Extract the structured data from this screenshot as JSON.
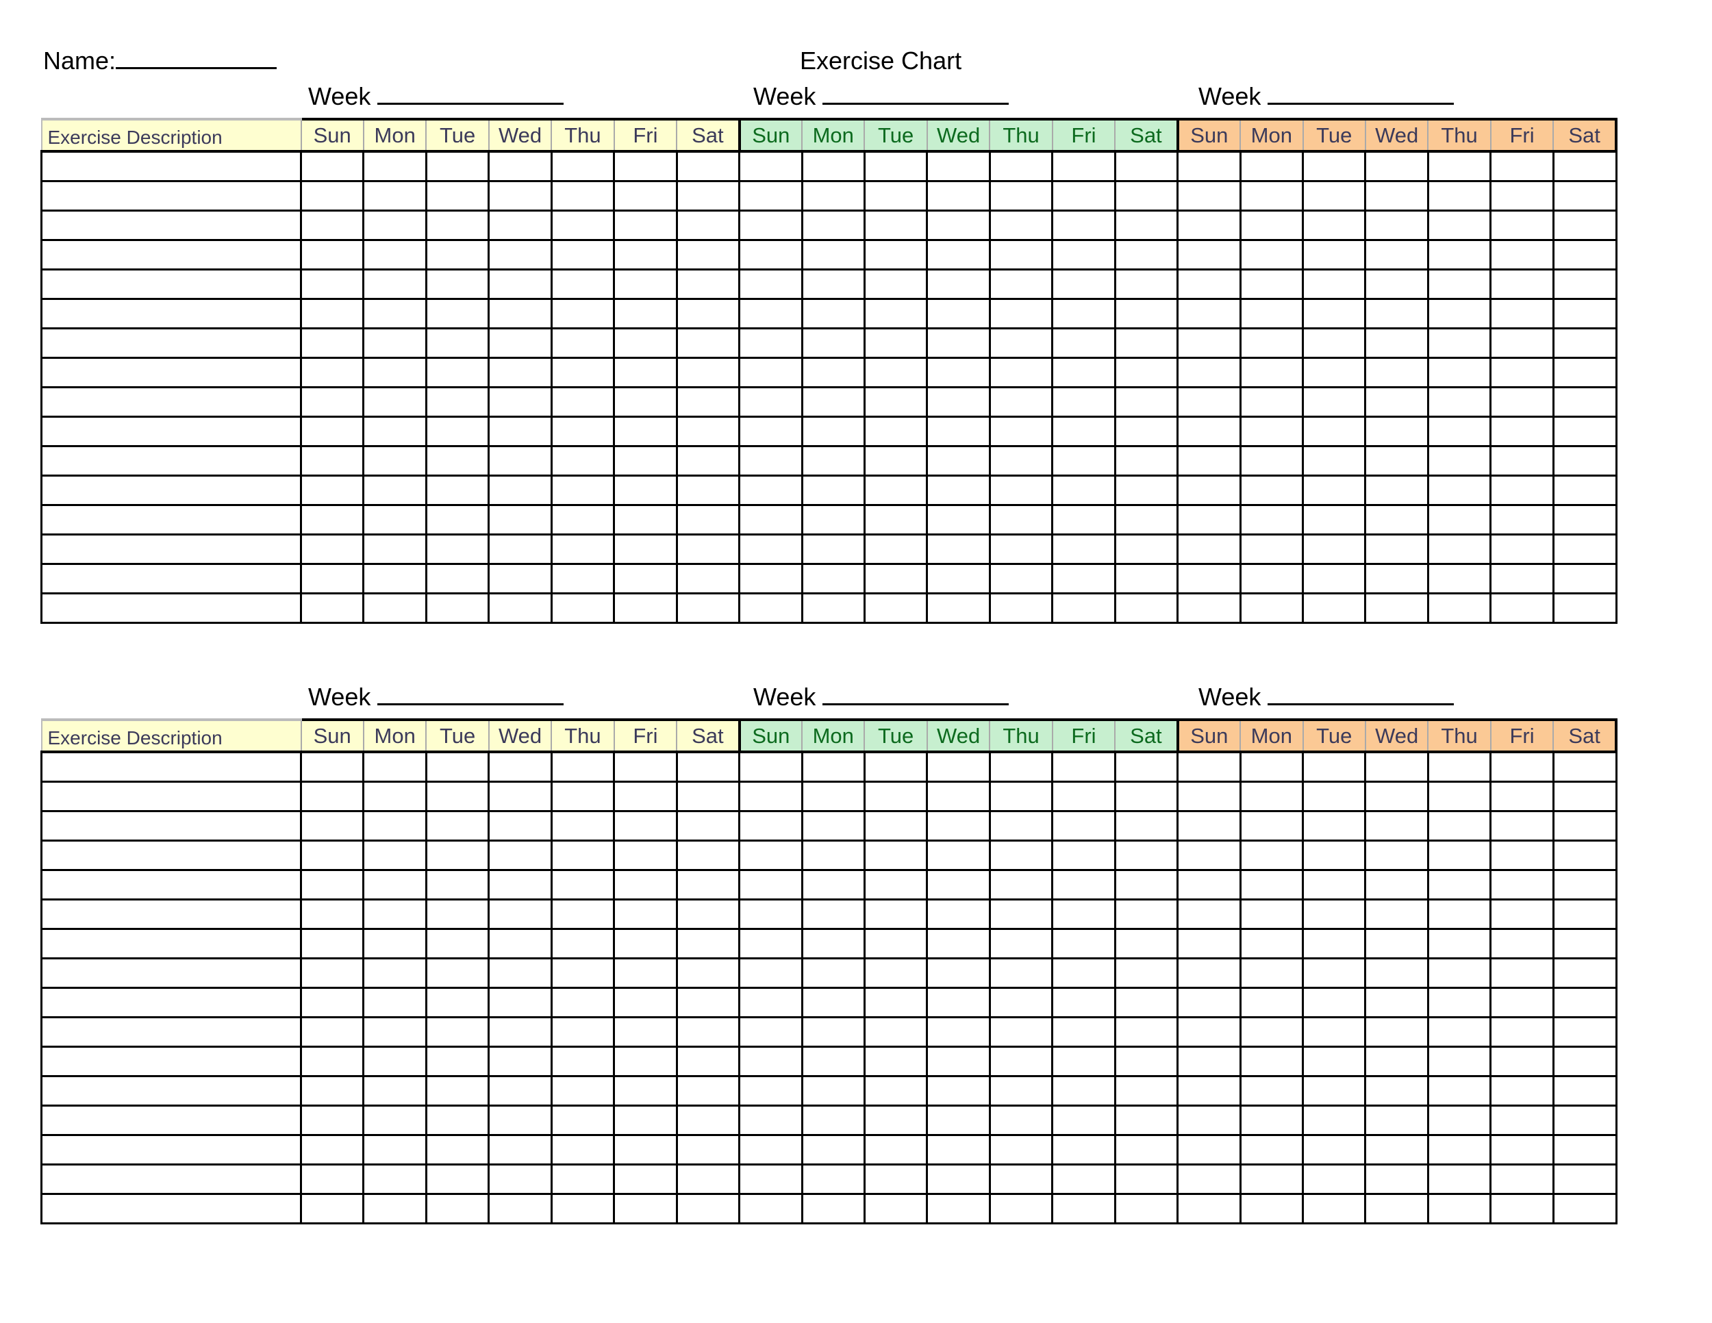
{
  "header": {
    "name_label": "Name:",
    "title": "Exercise Chart"
  },
  "week_label": "Week",
  "table": {
    "description_header": "Exercise Description",
    "days": [
      "Sun",
      "Mon",
      "Tue",
      "Wed",
      "Thu",
      "Fri",
      "Sat"
    ],
    "week_colors": [
      "#fefed0",
      "#c7efcf",
      "#fbc995"
    ],
    "row_count": 16
  },
  "sections": [
    {
      "weeks": [
        "Week",
        "Week",
        "Week"
      ]
    },
    {
      "weeks": [
        "Week",
        "Week",
        "Week"
      ]
    }
  ]
}
